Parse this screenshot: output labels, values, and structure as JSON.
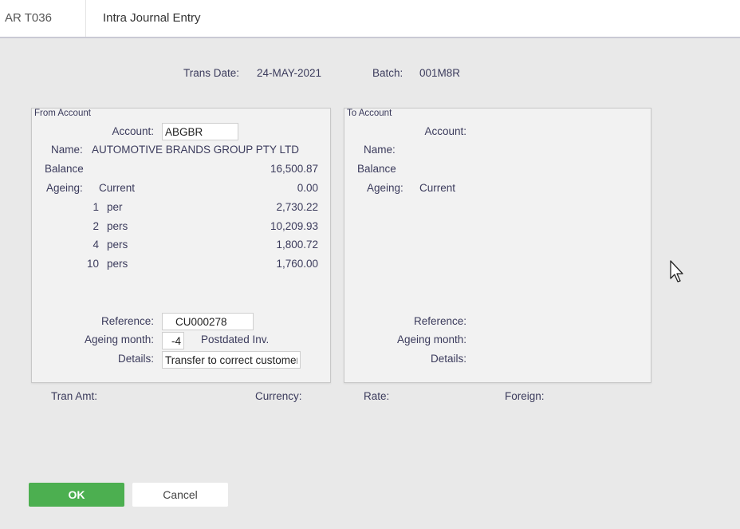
{
  "header": {
    "code": "AR T036",
    "title": "Intra Journal Entry"
  },
  "top": {
    "trans_date_label": "Trans Date:",
    "trans_date": "24-MAY-2021",
    "batch_label": "Batch:",
    "batch": "001M8R"
  },
  "from": {
    "title": "From Account",
    "account_label": "Account:",
    "account": "ABGBR",
    "name_label": "Name:",
    "name": "AUTOMOTIVE BRANDS GROUP PTY LTD",
    "balance_label": "Balance",
    "balance": "16,500.87",
    "ageing_label": "Ageing:",
    "ageing": [
      {
        "n": "",
        "label": "Current",
        "value": "0.00"
      },
      {
        "n": "1",
        "label": "per",
        "value": "2,730.22"
      },
      {
        "n": "2",
        "label": "pers",
        "value": "10,209.93"
      },
      {
        "n": "4",
        "label": "pers",
        "value": "1,800.72"
      },
      {
        "n": "10",
        "label": "pers",
        "value": "1,760.00"
      }
    ],
    "reference_label": "Reference:",
    "reference": "CU000278",
    "ageing_month_label": "Ageing month:",
    "ageing_month": "-4",
    "postdated_label": "Postdated Inv.",
    "details_label": "Details:",
    "details": "Transfer to correct customer"
  },
  "to": {
    "title": "To Account",
    "account_label": "Account:",
    "name_label": "Name:",
    "balance_label": "Balance",
    "ageing_label": "Ageing:",
    "ageing_current": "Current",
    "reference_label": "Reference:",
    "ageing_month_label": "Ageing month:",
    "details_label": "Details:"
  },
  "bottom": {
    "tran_amt_label": "Tran Amt:",
    "currency_label": "Currency:",
    "rate_label": "Rate:",
    "foreign_label": "Foreign:"
  },
  "buttons": {
    "ok": "OK",
    "cancel": "Cancel"
  },
  "colors": {
    "ok_green": "#4caf50",
    "panel_bg": "#f2f2f2",
    "page_bg": "#e9e9e9"
  }
}
